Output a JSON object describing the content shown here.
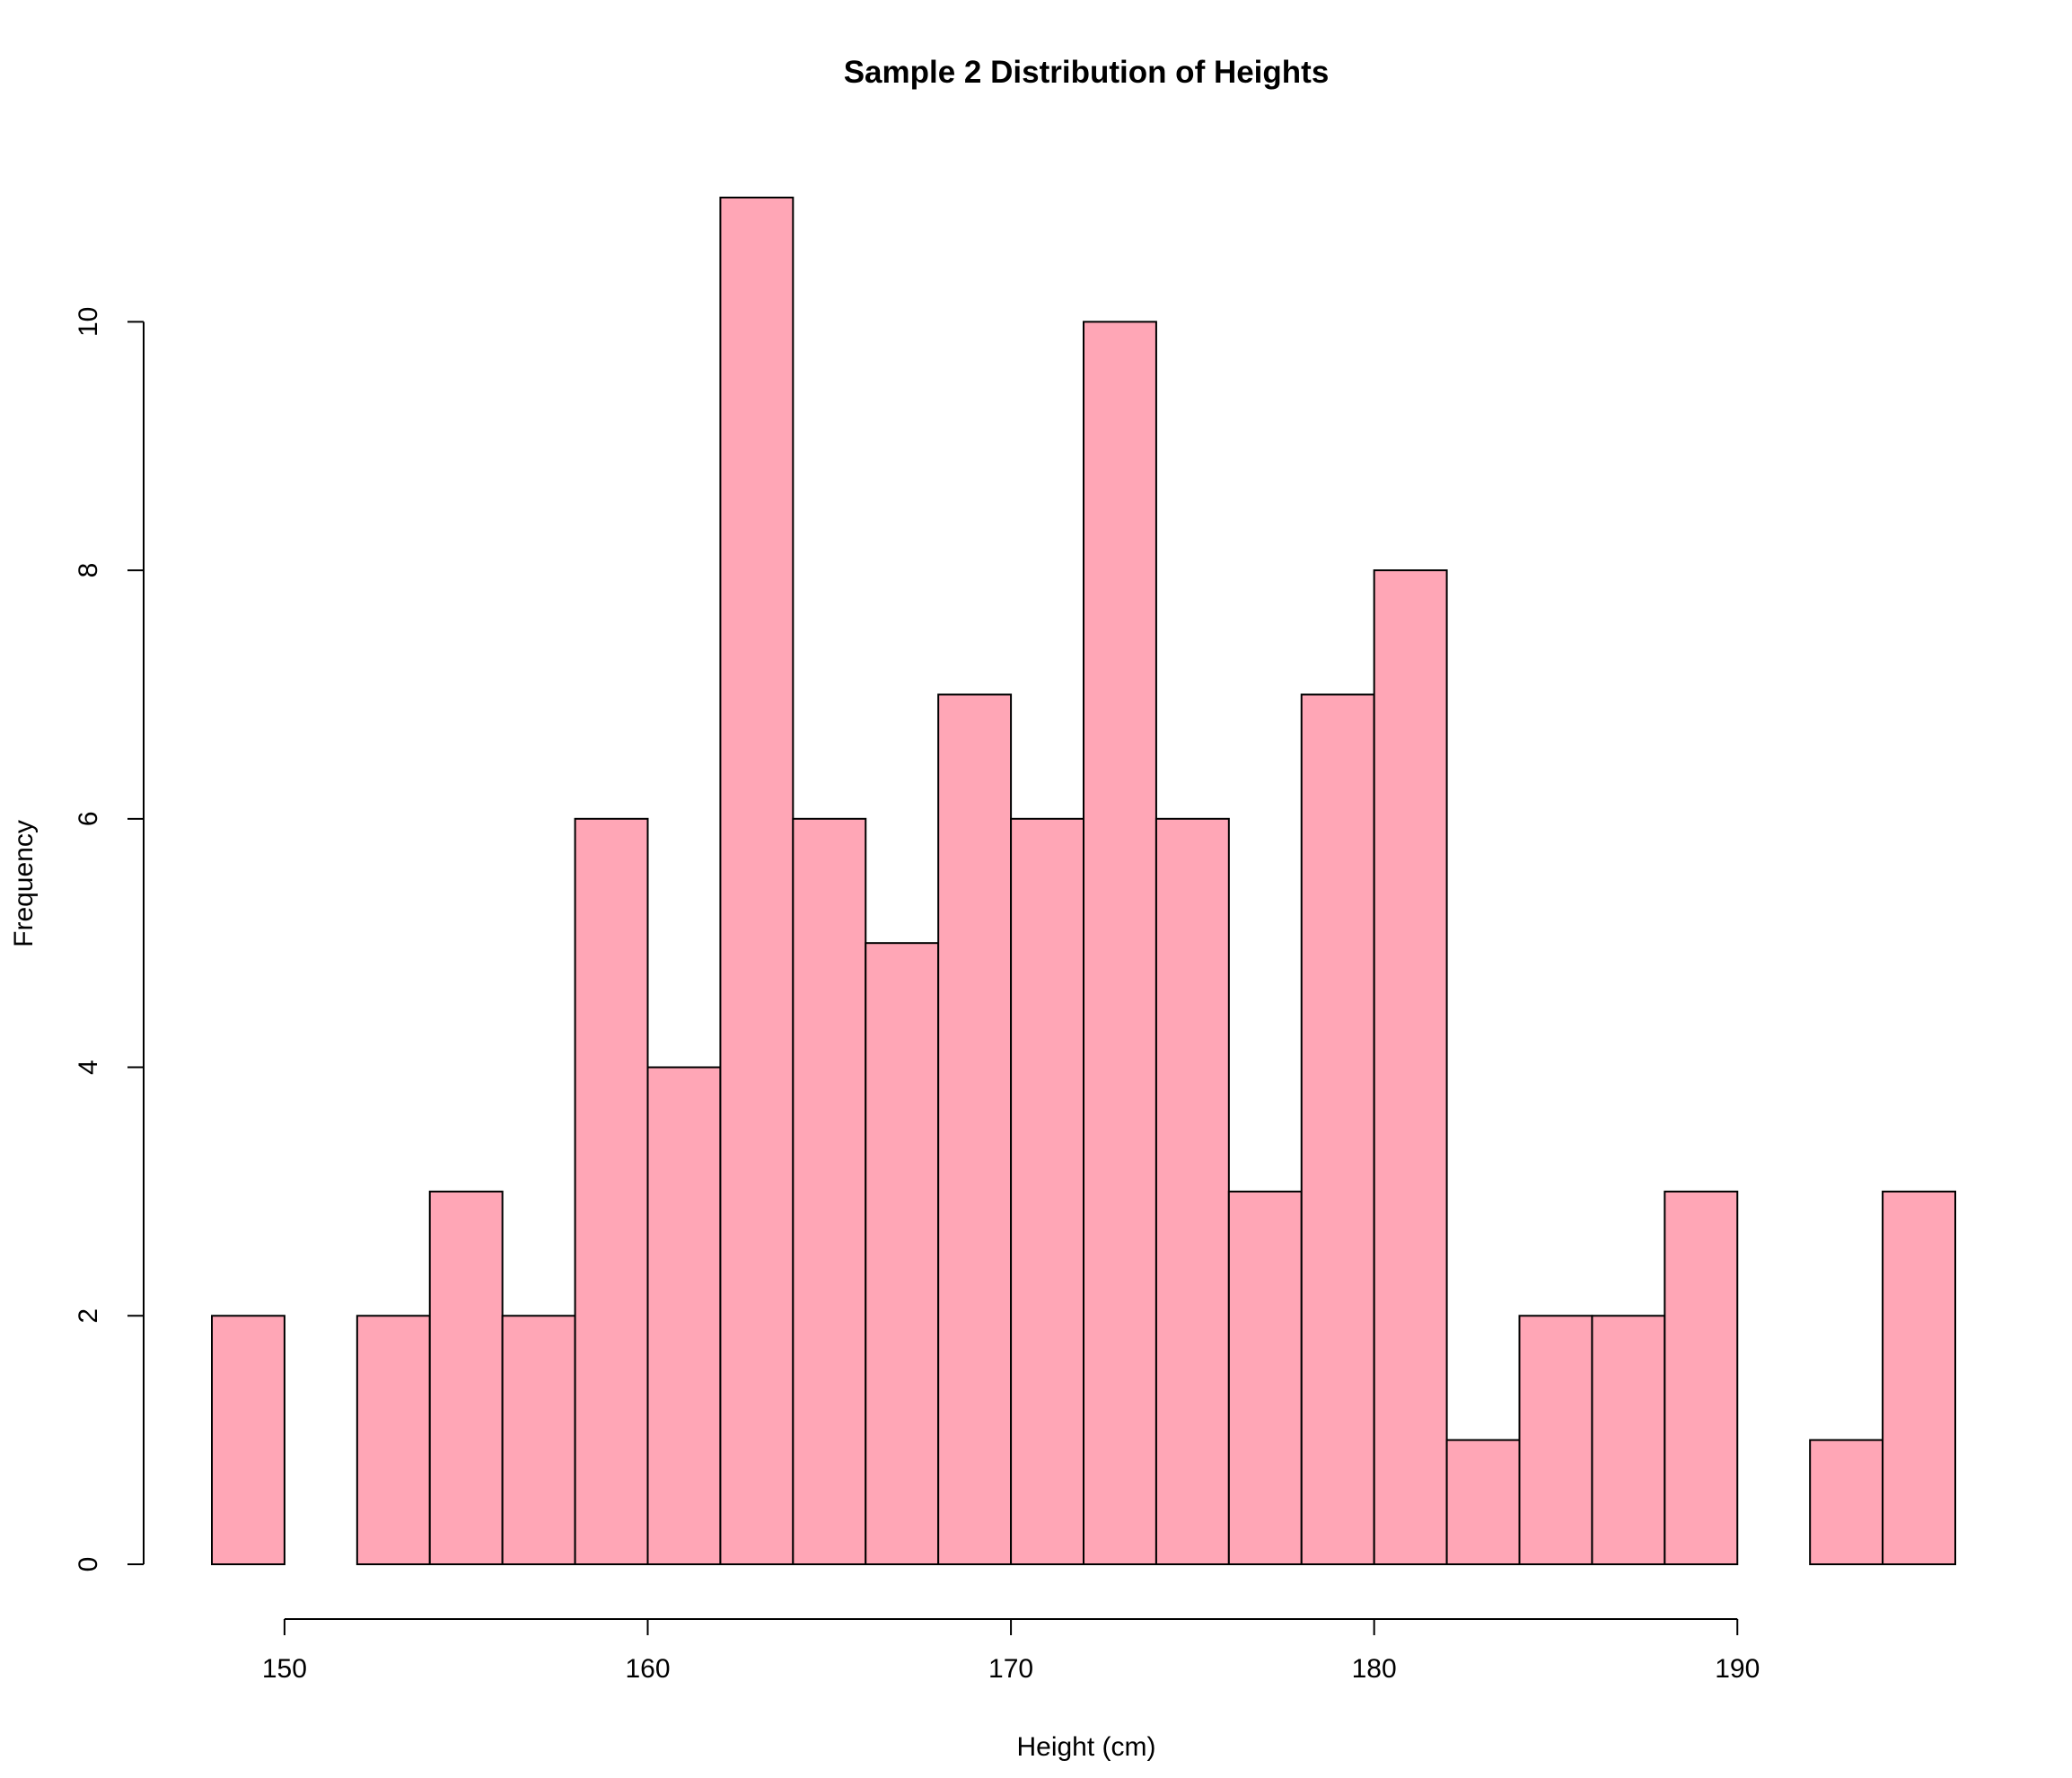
{
  "chart_data": {
    "type": "bar",
    "title": "Sample 2 Distribution of Heights",
    "xlabel": "Height (cm)",
    "ylabel": "Frequency",
    "bin_width": 2,
    "bin_start": 148,
    "bins": [
      {
        "x0": 148,
        "x1": 150,
        "count": 2
      },
      {
        "x0": 150,
        "x1": 152,
        "count": 0
      },
      {
        "x0": 152,
        "x1": 154,
        "count": 2
      },
      {
        "x0": 154,
        "x1": 156,
        "count": 3
      },
      {
        "x0": 156,
        "x1": 158,
        "count": 2
      },
      {
        "x0": 158,
        "x1": 160,
        "count": 6
      },
      {
        "x0": 160,
        "x1": 162,
        "count": 4
      },
      {
        "x0": 162,
        "x1": 164,
        "count": 11
      },
      {
        "x0": 164,
        "x1": 166,
        "count": 6
      },
      {
        "x0": 166,
        "x1": 168,
        "count": 5
      },
      {
        "x0": 168,
        "x1": 170,
        "count": 7
      },
      {
        "x0": 170,
        "x1": 172,
        "count": 6
      },
      {
        "x0": 172,
        "x1": 174,
        "count": 10
      },
      {
        "x0": 174,
        "x1": 176,
        "count": 6
      },
      {
        "x0": 176,
        "x1": 178,
        "count": 3
      },
      {
        "x0": 178,
        "x1": 180,
        "count": 7
      },
      {
        "x0": 180,
        "x1": 182,
        "count": 8
      },
      {
        "x0": 182,
        "x1": 184,
        "count": 1
      },
      {
        "x0": 184,
        "x1": 186,
        "count": 2
      },
      {
        "x0": 186,
        "x1": 188,
        "count": 2
      },
      {
        "x0": 188,
        "x1": 190,
        "count": 3
      },
      {
        "x0": 190,
        "x1": 192,
        "count": 0
      },
      {
        "x0": 192,
        "x1": 194,
        "count": 1
      },
      {
        "x0": 194,
        "x1": 196,
        "count": 3
      }
    ],
    "xlim": [
      148,
      196
    ],
    "ylim": [
      0,
      11
    ],
    "xticks": [
      150,
      160,
      170,
      180,
      190
    ],
    "yticks": [
      0,
      2,
      4,
      6,
      8,
      10
    ],
    "grid": false,
    "bar_color": "#FFA6B6",
    "edge_color": "#000000"
  }
}
